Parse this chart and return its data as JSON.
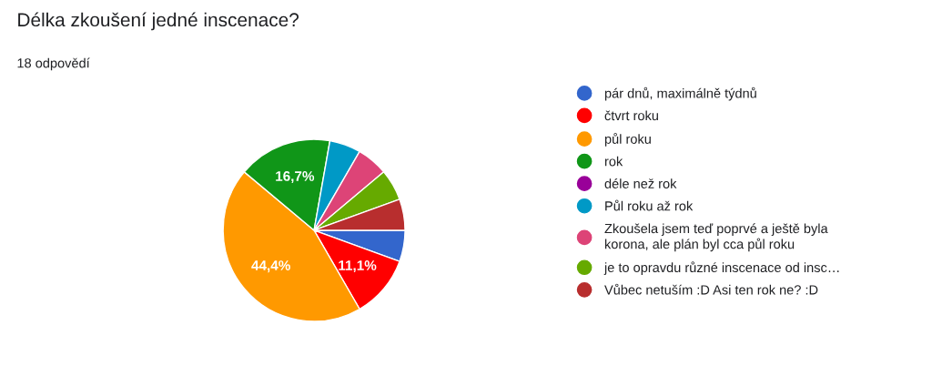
{
  "chart_data": {
    "type": "pie",
    "title": "Délka zkoušení jedné inscenace?",
    "subtitle": "18 odpovědí",
    "categories": [
      "pár dnů, maximálně týdnů",
      "čtvrt roku",
      "půl roku",
      "rok",
      "déle než rok",
      "Půl roku až rok",
      "Zkoušela jsem teď poprvé a ještě byla\nkorona, ale plán byl cca půl roku",
      "je to opravdu různé inscenace od insc…",
      "Vůbec netuším :D Asi ten rok ne? :D"
    ],
    "values": [
      5.55,
      11.1,
      44.4,
      16.7,
      0,
      5.55,
      5.55,
      5.55,
      5.55
    ],
    "value_labels": [
      null,
      "11,1%",
      "44,4%",
      "16,7%",
      null,
      null,
      null,
      null,
      null
    ],
    "colors": [
      "#3366cc",
      "#ff0000",
      "#ff9900",
      "#109618",
      "#990099",
      "#0099c6",
      "#dd4477",
      "#66aa00",
      "#b82e2e"
    ],
    "legend": "right"
  }
}
